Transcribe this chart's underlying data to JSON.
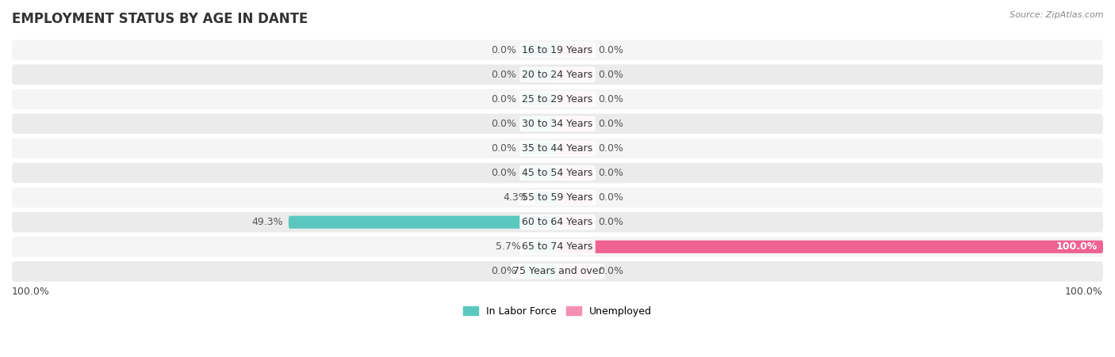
{
  "title": "EMPLOYMENT STATUS BY AGE IN DANTE",
  "source": "Source: ZipAtlas.com",
  "age_groups": [
    "16 to 19 Years",
    "20 to 24 Years",
    "25 to 29 Years",
    "30 to 34 Years",
    "35 to 44 Years",
    "45 to 54 Years",
    "55 to 59 Years",
    "60 to 64 Years",
    "65 to 74 Years",
    "75 Years and over"
  ],
  "labor_force": [
    0.0,
    0.0,
    0.0,
    0.0,
    0.0,
    0.0,
    4.3,
    49.3,
    5.7,
    0.0
  ],
  "unemployed": [
    0.0,
    0.0,
    0.0,
    0.0,
    0.0,
    0.0,
    0.0,
    0.0,
    100.0,
    0.0
  ],
  "labor_force_color": "#5BC8C0",
  "unemployed_color": "#F48FB1",
  "unemployed_color_strong": "#F06292",
  "row_bg_light": "#F5F5F5",
  "row_bg_dark": "#EBEBEB",
  "title_fontsize": 12,
  "label_fontsize": 9,
  "tick_fontsize": 9,
  "xlim": 100,
  "stub_size": 6.5,
  "legend_labor": "In Labor Force",
  "legend_unemployed": "Unemployed",
  "axis_label_left": "100.0%",
  "axis_label_right": "100.0%",
  "value_text_color": "#555555"
}
